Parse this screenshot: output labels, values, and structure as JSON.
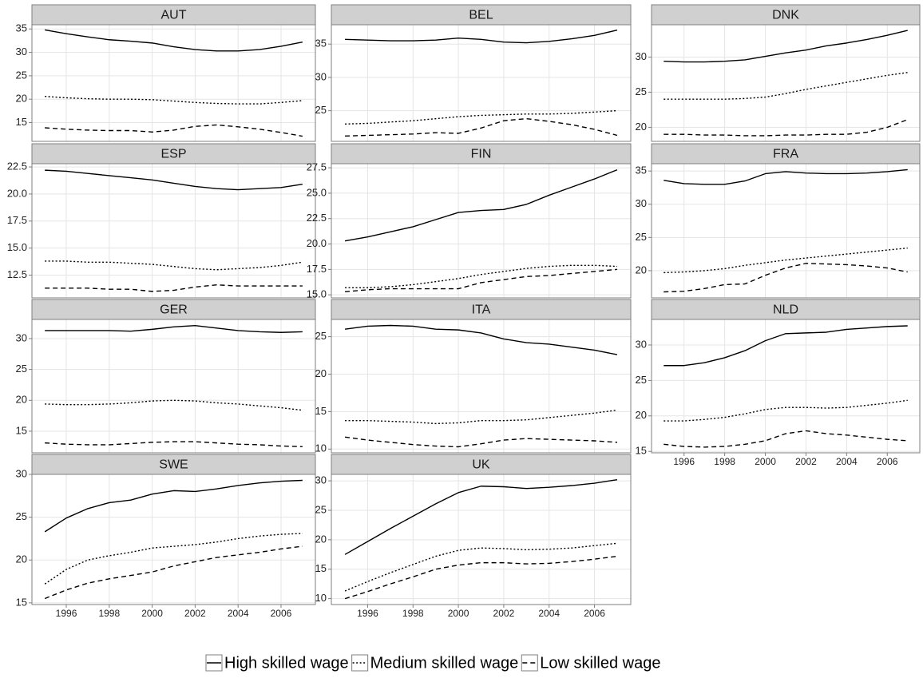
{
  "chart_data": [
    {
      "type": "line",
      "title": "AUT",
      "x": [
        1995,
        1996,
        1997,
        1998,
        1999,
        2000,
        2001,
        2002,
        2003,
        2004,
        2005,
        2006,
        2007
      ],
      "series": [
        {
          "name": "High skilled wage",
          "color": "#000000",
          "dash": "solid",
          "values": [
            34.8,
            34,
            33.3,
            32.7,
            32.4,
            32,
            31.2,
            30.6,
            30.3,
            30.3,
            30.6,
            31.3,
            32.2
          ]
        },
        {
          "name": "Medium skilled wage",
          "color": "#000000",
          "dash": "dotted",
          "values": [
            20.6,
            20.3,
            20.1,
            20,
            20,
            19.9,
            19.6,
            19.3,
            19.1,
            19,
            19,
            19.3,
            19.7
          ]
        },
        {
          "name": "Low skilled wage",
          "color": "#000000",
          "dash": "dashed",
          "values": [
            13.9,
            13.6,
            13.4,
            13.3,
            13.3,
            13,
            13.4,
            14.2,
            14.5,
            14.1,
            13.6,
            12.9,
            12.1
          ]
        }
      ],
      "xlim": [
        1994.4,
        2007.6
      ],
      "xticks": [
        1996,
        1998,
        2000,
        2002,
        2004,
        2006
      ],
      "ylim": [
        11.0,
        35.9
      ],
      "yticks": [
        15,
        20,
        25,
        30,
        35
      ],
      "grid": true
    },
    {
      "type": "line",
      "title": "BEL",
      "x": [
        1995,
        1996,
        1997,
        1998,
        1999,
        2000,
        2001,
        2002,
        2003,
        2004,
        2005,
        2006,
        2007
      ],
      "series": [
        {
          "name": "High skilled wage",
          "color": "#000000",
          "dash": "solid",
          "values": [
            35.7,
            35.6,
            35.5,
            35.5,
            35.6,
            35.9,
            35.7,
            35.3,
            35.2,
            35.4,
            35.8,
            36.3,
            37.1
          ]
        },
        {
          "name": "Medium skilled wage",
          "color": "#000000",
          "dash": "dotted",
          "values": [
            23,
            23.1,
            23.3,
            23.5,
            23.8,
            24.1,
            24.3,
            24.4,
            24.5,
            24.5,
            24.6,
            24.8,
            25
          ]
        },
        {
          "name": "Low skilled wage",
          "color": "#000000",
          "dash": "dashed",
          "values": [
            21.2,
            21.3,
            21.4,
            21.5,
            21.7,
            21.6,
            22.4,
            23.5,
            23.8,
            23.4,
            22.9,
            22.2,
            21.3
          ]
        }
      ],
      "xlim": [
        1994.4,
        2007.6
      ],
      "xticks": [
        1996,
        1998,
        2000,
        2002,
        2004,
        2006
      ],
      "ylim": [
        20.4,
        37.9
      ],
      "yticks": [
        25,
        30,
        35
      ],
      "grid": true
    },
    {
      "type": "line",
      "title": "DNK",
      "x": [
        1995,
        1996,
        1997,
        1998,
        1999,
        2000,
        2001,
        2002,
        2003,
        2004,
        2005,
        2006,
        2007
      ],
      "series": [
        {
          "name": "High skilled wage",
          "color": "#000000",
          "dash": "solid",
          "values": [
            29.4,
            29.3,
            29.3,
            29.4,
            29.6,
            30.1,
            30.6,
            31,
            31.6,
            32,
            32.5,
            33.1,
            33.8
          ]
        },
        {
          "name": "Medium skilled wage",
          "color": "#000000",
          "dash": "dotted",
          "values": [
            24,
            24,
            24,
            24,
            24.1,
            24.3,
            24.8,
            25.4,
            25.9,
            26.4,
            26.9,
            27.4,
            27.8
          ]
        },
        {
          "name": "Low skilled wage",
          "color": "#000000",
          "dash": "dashed",
          "values": [
            19,
            19,
            18.9,
            18.9,
            18.8,
            18.8,
            18.9,
            18.9,
            19,
            19,
            19.3,
            20,
            21.1
          ]
        }
      ],
      "xlim": [
        1994.4,
        2007.6
      ],
      "xticks": [
        1996,
        1998,
        2000,
        2002,
        2004,
        2006
      ],
      "ylim": [
        18.0,
        34.6
      ],
      "yticks": [
        20,
        25,
        30
      ],
      "grid": true
    },
    {
      "type": "line",
      "title": "ESP",
      "x": [
        1995,
        1996,
        1997,
        1998,
        1999,
        2000,
        2001,
        2002,
        2003,
        2004,
        2005,
        2006,
        2007
      ],
      "series": [
        {
          "name": "High skilled wage",
          "color": "#000000",
          "dash": "solid",
          "values": [
            22.2,
            22.1,
            21.9,
            21.7,
            21.5,
            21.3,
            21,
            20.7,
            20.5,
            20.4,
            20.5,
            20.6,
            20.9
          ]
        },
        {
          "name": "Medium skilled wage",
          "color": "#000000",
          "dash": "dotted",
          "values": [
            13.8,
            13.8,
            13.7,
            13.7,
            13.6,
            13.5,
            13.3,
            13.1,
            13,
            13.1,
            13.2,
            13.4,
            13.7
          ]
        },
        {
          "name": "Low skilled wage",
          "color": "#000000",
          "dash": "dashed",
          "values": [
            11.3,
            11.3,
            11.3,
            11.2,
            11.2,
            11,
            11.1,
            11.4,
            11.6,
            11.5,
            11.5,
            11.5,
            11.5
          ]
        }
      ],
      "xlim": [
        1994.4,
        2007.6
      ],
      "xticks": [
        1996,
        1998,
        2000,
        2002,
        2004,
        2006
      ],
      "ylim": [
        10.4,
        22.8
      ],
      "yticks": [
        12.5,
        {
          "value": 15,
          "label": "15.0"
        },
        17.5,
        {
          "value": 20,
          "label": "20.0"
        },
        22.5
      ],
      "grid": true
    },
    {
      "type": "line",
      "title": "FIN",
      "x": [
        1995,
        1996,
        1997,
        1998,
        1999,
        2000,
        2001,
        2002,
        2003,
        2004,
        2005,
        2006,
        2007
      ],
      "series": [
        {
          "name": "High skilled wage",
          "color": "#000000",
          "dash": "solid",
          "values": [
            20.3,
            20.7,
            21.2,
            21.7,
            22.4,
            23.1,
            23.3,
            23.4,
            23.9,
            24.8,
            25.6,
            26.4,
            27.3
          ]
        },
        {
          "name": "Medium skilled wage",
          "color": "#000000",
          "dash": "dotted",
          "values": [
            15.7,
            15.7,
            15.8,
            16,
            16.3,
            16.6,
            17,
            17.3,
            17.6,
            17.8,
            17.9,
            17.9,
            17.8
          ]
        },
        {
          "name": "Low skilled wage",
          "color": "#000000",
          "dash": "dashed",
          "values": [
            15.3,
            15.5,
            15.6,
            15.6,
            15.6,
            15.6,
            16.2,
            16.5,
            16.8,
            16.9,
            17.1,
            17.3,
            17.5
          ]
        }
      ],
      "xlim": [
        1994.4,
        2007.6
      ],
      "xticks": [
        1996,
        1998,
        2000,
        2002,
        2004,
        2006
      ],
      "ylim": [
        14.7,
        27.9
      ],
      "yticks": [
        {
          "value": 15,
          "label": "15.0"
        },
        17.5,
        {
          "value": 20,
          "label": "20.0"
        },
        22.5,
        {
          "value": 25,
          "label": "25.0"
        },
        27.5
      ],
      "grid": true
    },
    {
      "type": "line",
      "title": "FRA",
      "x": [
        1995,
        1996,
        1997,
        1998,
        1999,
        2000,
        2001,
        2002,
        2003,
        2004,
        2005,
        2006,
        2007
      ],
      "series": [
        {
          "name": "High skilled wage",
          "color": "#000000",
          "dash": "solid",
          "values": [
            33.6,
            33.1,
            33,
            33,
            33.5,
            34.6,
            34.9,
            34.7,
            34.6,
            34.6,
            34.7,
            34.9,
            35.2
          ]
        },
        {
          "name": "Medium skilled wage",
          "color": "#000000",
          "dash": "dotted",
          "values": [
            19.7,
            19.8,
            20,
            20.3,
            20.8,
            21.2,
            21.6,
            21.9,
            22.2,
            22.5,
            22.8,
            23.1,
            23.4
          ]
        },
        {
          "name": "Low skilled wage",
          "color": "#000000",
          "dash": "dashed",
          "values": [
            16.8,
            16.9,
            17.3,
            17.9,
            18,
            19.3,
            20.4,
            21.1,
            21,
            20.9,
            20.7,
            20.4,
            19.8
          ]
        }
      ],
      "xlim": [
        1994.4,
        2007.6
      ],
      "xticks": [
        1996,
        1998,
        2000,
        2002,
        2004,
        2006
      ],
      "ylim": [
        15.9,
        36.1
      ],
      "yticks": [
        20,
        25,
        30,
        35
      ],
      "grid": true
    },
    {
      "type": "line",
      "title": "GER",
      "x": [
        1995,
        1996,
        1997,
        1998,
        1999,
        2000,
        2001,
        2002,
        2003,
        2004,
        2005,
        2006,
        2007
      ],
      "series": [
        {
          "name": "High skilled wage",
          "color": "#000000",
          "dash": "solid",
          "values": [
            31.3,
            31.3,
            31.3,
            31.3,
            31.2,
            31.5,
            31.9,
            32.1,
            31.7,
            31.3,
            31.1,
            31,
            31.1
          ]
        },
        {
          "name": "Medium skilled wage",
          "color": "#000000",
          "dash": "dotted",
          "values": [
            19.4,
            19.3,
            19.3,
            19.4,
            19.6,
            19.9,
            20,
            19.9,
            19.6,
            19.4,
            19.1,
            18.8,
            18.4
          ]
        },
        {
          "name": "Low skilled wage",
          "color": "#000000",
          "dash": "dashed",
          "values": [
            13.1,
            12.9,
            12.8,
            12.8,
            13,
            13.2,
            13.3,
            13.3,
            13.1,
            12.9,
            12.8,
            12.6,
            12.5
          ]
        }
      ],
      "xlim": [
        1994.4,
        2007.6
      ],
      "xticks": [
        1996,
        1998,
        2000,
        2002,
        2004,
        2006
      ],
      "ylim": [
        11.5,
        33.1
      ],
      "yticks": [
        15,
        20,
        25,
        30
      ],
      "grid": true
    },
    {
      "type": "line",
      "title": "ITA",
      "x": [
        1995,
        1996,
        1997,
        1998,
        1999,
        2000,
        2001,
        2002,
        2003,
        2004,
        2005,
        2006,
        2007
      ],
      "series": [
        {
          "name": "High skilled wage",
          "color": "#000000",
          "dash": "solid",
          "values": [
            26,
            26.4,
            26.5,
            26.4,
            26,
            25.9,
            25.5,
            24.7,
            24.2,
            24,
            23.6,
            23.2,
            22.6
          ]
        },
        {
          "name": "Medium skilled wage",
          "color": "#000000",
          "dash": "dotted",
          "values": [
            13.8,
            13.8,
            13.7,
            13.6,
            13.4,
            13.5,
            13.8,
            13.8,
            13.9,
            14.2,
            14.5,
            14.8,
            15.2
          ]
        },
        {
          "name": "Low skilled wage",
          "color": "#000000",
          "dash": "dashed",
          "values": [
            11.6,
            11.2,
            10.9,
            10.6,
            10.4,
            10.3,
            10.7,
            11.2,
            11.4,
            11.3,
            11.2,
            11.1,
            10.9
          ]
        }
      ],
      "xlim": [
        1994.4,
        2007.6
      ],
      "xticks": [
        1996,
        1998,
        2000,
        2002,
        2004,
        2006
      ],
      "ylim": [
        9.5,
        27.3
      ],
      "yticks": [
        10,
        15,
        20,
        25
      ],
      "grid": true
    },
    {
      "type": "line",
      "title": "NLD",
      "x": [
        1995,
        1996,
        1997,
        1998,
        1999,
        2000,
        2001,
        2002,
        2003,
        2004,
        2005,
        2006,
        2007
      ],
      "series": [
        {
          "name": "High skilled wage",
          "color": "#000000",
          "dash": "solid",
          "values": [
            27.1,
            27.1,
            27.5,
            28.2,
            29.2,
            30.6,
            31.6,
            31.7,
            31.8,
            32.2,
            32.4,
            32.6,
            32.7
          ]
        },
        {
          "name": "Medium skilled wage",
          "color": "#000000",
          "dash": "dotted",
          "values": [
            19.3,
            19.3,
            19.5,
            19.8,
            20.3,
            20.9,
            21.2,
            21.2,
            21.1,
            21.2,
            21.5,
            21.8,
            22.2
          ]
        },
        {
          "name": "Low skilled wage",
          "color": "#000000",
          "dash": "dashed",
          "values": [
            16,
            15.7,
            15.6,
            15.7,
            16,
            16.5,
            17.5,
            17.9,
            17.5,
            17.3,
            17,
            16.7,
            16.5
          ]
        }
      ],
      "xlim": [
        1994.4,
        2007.6
      ],
      "xticks": [
        1996,
        1998,
        2000,
        2002,
        2004,
        2006
      ],
      "ylim": [
        14.8,
        33.6
      ],
      "yticks": [
        15,
        20,
        25,
        30
      ],
      "grid": true
    },
    {
      "type": "line",
      "title": "SWE",
      "x": [
        1995,
        1996,
        1997,
        1998,
        1999,
        2000,
        2001,
        2002,
        2003,
        2004,
        2005,
        2006,
        2007
      ],
      "series": [
        {
          "name": "High skilled wage",
          "color": "#000000",
          "dash": "solid",
          "values": [
            23.3,
            24.9,
            26,
            26.7,
            27,
            27.7,
            28.1,
            28,
            28.3,
            28.7,
            29,
            29.2,
            29.3
          ]
        },
        {
          "name": "Medium skilled wage",
          "color": "#000000",
          "dash": "dotted",
          "values": [
            17.2,
            18.9,
            20,
            20.5,
            20.9,
            21.4,
            21.6,
            21.8,
            22.1,
            22.5,
            22.8,
            23,
            23.1
          ]
        },
        {
          "name": "Low skilled wage",
          "color": "#000000",
          "dash": "dashed",
          "values": [
            15.5,
            16.5,
            17.3,
            17.8,
            18.2,
            18.6,
            19.3,
            19.8,
            20.3,
            20.6,
            20.9,
            21.3,
            21.6
          ]
        }
      ],
      "xlim": [
        1994.4,
        2007.6
      ],
      "xticks": [
        1996,
        1998,
        2000,
        2002,
        2004,
        2006
      ],
      "ylim": [
        14.8,
        30.0
      ],
      "yticks": [
        15,
        20,
        25,
        30
      ],
      "grid": true
    },
    {
      "type": "line",
      "title": "UK",
      "x": [
        1995,
        1996,
        1997,
        1998,
        1999,
        2000,
        2001,
        2002,
        2003,
        2004,
        2005,
        2006,
        2007
      ],
      "series": [
        {
          "name": "High skilled wage",
          "color": "#000000",
          "dash": "solid",
          "values": [
            17.5,
            19.7,
            21.9,
            24,
            26.1,
            28,
            29.1,
            29,
            28.7,
            28.9,
            29.2,
            29.6,
            30.2
          ]
        },
        {
          "name": "Medium skilled wage",
          "color": "#000000",
          "dash": "dotted",
          "values": [
            11.3,
            12.9,
            14.4,
            15.8,
            17.2,
            18.2,
            18.6,
            18.5,
            18.3,
            18.4,
            18.6,
            19,
            19.4
          ]
        },
        {
          "name": "Low skilled wage",
          "color": "#000000",
          "dash": "dashed",
          "values": [
            10,
            11.2,
            12.5,
            13.7,
            15,
            15.7,
            16.1,
            16.1,
            15.9,
            16,
            16.3,
            16.7,
            17.2
          ]
        }
      ],
      "xlim": [
        1994.4,
        2007.6
      ],
      "xticks": [
        1996,
        1998,
        2000,
        2002,
        2004,
        2006
      ],
      "ylim": [
        9.0,
        31.1
      ],
      "yticks": [
        10,
        15,
        20,
        25,
        30
      ],
      "grid": true
    }
  ]
}
